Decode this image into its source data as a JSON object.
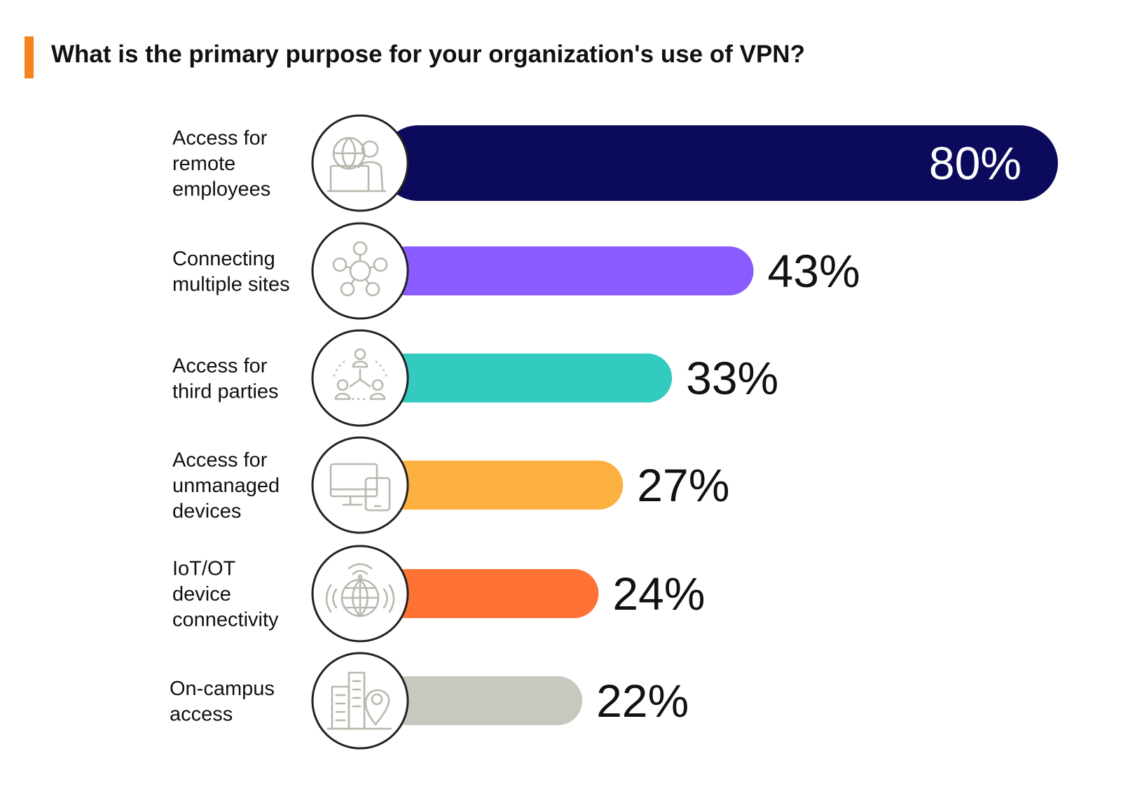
{
  "title": "What is the primary purpose for your organization's use of VPN?",
  "colors": {
    "accent": "#F5821F",
    "icon_stroke": "#b9b7ad",
    "circle_border": "#222222"
  },
  "chart_data": {
    "type": "bar",
    "orientation": "horizontal",
    "title": "What is the primary purpose for your organization's use of VPN?",
    "xlabel": "",
    "ylabel": "",
    "grid": false,
    "legend": "none",
    "xlim": [
      0,
      80
    ],
    "categories": [
      "Access for remote employees",
      "Connecting multiple sites",
      "Access for third parties",
      "Access for unmanaged devices",
      "IoT/OT device connectivity",
      "On-campus access"
    ],
    "category_label_lines": [
      [
        "Access for",
        "remote",
        "employees"
      ],
      [
        "Connecting",
        "multiple sites"
      ],
      [
        "Access for",
        "third parties"
      ],
      [
        "Access for",
        "unmanaged",
        "devices"
      ],
      [
        "IoT/OT",
        "device",
        "connectivity"
      ],
      [
        "On-campus",
        "access"
      ]
    ],
    "values": [
      80,
      43,
      33,
      27,
      24,
      22
    ],
    "value_labels": [
      "80%",
      "43%",
      "33%",
      "27%",
      "24%",
      "22%"
    ],
    "bar_colors": [
      "#0B0A5C",
      "#8A5CFF",
      "#33CBBF",
      "#FBB040",
      "#FF7235",
      "#C8C7C0"
    ],
    "icons": [
      "remote-worker-icon",
      "network-hub-icon",
      "third-party-org-icon",
      "devices-icon",
      "iot-globe-icon",
      "campus-location-icon"
    ]
  }
}
